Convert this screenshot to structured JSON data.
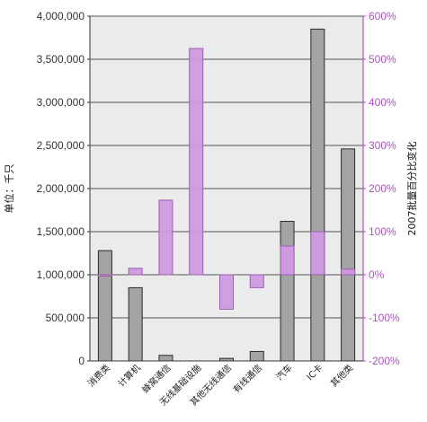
{
  "chart_data": {
    "type": "bar",
    "categories": [
      "消费类",
      "计算机",
      "蜂窝通信",
      "无线基础设施",
      "其他无线通信",
      "有线通信",
      "汽车",
      "IC卡",
      "其他类"
    ],
    "series": [
      {
        "values": [
          1280000,
          850000,
          65000,
          0,
          30000,
          110000,
          1620000,
          3850000,
          2460000
        ]
      },
      {
        "values": [
          -2,
          15,
          173,
          525,
          -80,
          -30,
          67,
          100,
          13
        ]
      }
    ],
    "ylabel": "单位：千只",
    "y2label": "2007批量百分比变化",
    "ylim": [
      0,
      4000000
    ],
    "y2lim": [
      -200,
      600
    ],
    "yticks": [
      "0",
      "500,000",
      "1,000,000",
      "1,500,000",
      "2,000,000",
      "2,500,000",
      "3,000,000",
      "3,500,000",
      "4,000,000"
    ],
    "y2ticks": [
      "-200%",
      "-100%",
      "0%",
      "100%",
      "200%",
      "300%",
      "400%",
      "500%",
      "600%"
    ],
    "grid": true,
    "colors": {
      "plot_bg": "#ebebeb",
      "grid": "#555555",
      "volume_bar": "#a3a3a3",
      "volume_edge": "#2b2b2b",
      "change_bar": "#cf9ae0",
      "change_edge": "#9a5fae",
      "right_axis": "#b04fc4"
    }
  }
}
